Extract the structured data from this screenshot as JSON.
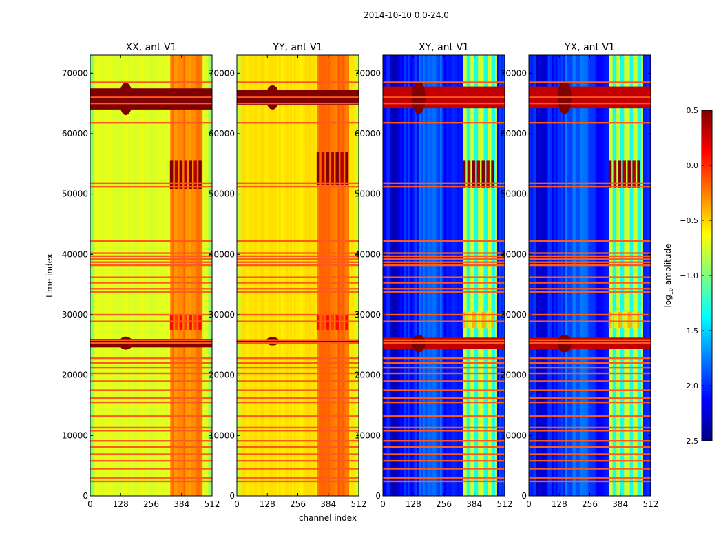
{
  "figure": {
    "suptitle": "2014-10-10 0.0-24.0",
    "xlabel": "channel index",
    "ylabel": "time index"
  },
  "colors": {
    "jet": [
      "#00007f",
      "#0000ff",
      "#007fff",
      "#00ffff",
      "#7fff7f",
      "#ffff00",
      "#ff7f00",
      "#ff0000",
      "#7f0000"
    ],
    "flag_line": "#ff5a1e"
  },
  "chart_data": {
    "type": "heatmap",
    "x_ticks": [
      0,
      128,
      256,
      384,
      512
    ],
    "y_ticks": [
      0,
      10000,
      20000,
      30000,
      40000,
      50000,
      60000,
      70000
    ],
    "xlim": [
      0,
      512
    ],
    "ylim": [
      0,
      73000
    ],
    "panels": [
      {
        "title": "XX, ant V1",
        "kind": "auto",
        "base": -0.72,
        "bright_band_level": -0.25,
        "rfi_bands": [
          [
            64000,
            67500
          ],
          [
            24600,
            26000
          ]
        ],
        "rfi_level": 0.5,
        "hot_blocks": [
          [
            50800,
            55500,
            0.5
          ],
          [
            27500,
            30000,
            0.1
          ]
        ]
      },
      {
        "title": "YY, ant V1",
        "kind": "auto",
        "base": -0.55,
        "bright_band_level": -0.2,
        "rfi_bands": [
          [
            64700,
            67300
          ],
          [
            25300,
            25900
          ]
        ],
        "rfi_level": 0.5,
        "hot_blocks": [
          [
            51500,
            57000,
            0.5
          ],
          [
            27500,
            30000,
            0.1
          ]
        ]
      },
      {
        "title": "XY, ant V1",
        "kind": "cross",
        "base": -2.05,
        "bright_band_level": -1.0,
        "rfi_bands": [
          [
            64200,
            67800
          ],
          [
            24300,
            26200
          ]
        ],
        "rfi_level": 0.3,
        "hot_blocks": [
          [
            51000,
            55500,
            0.5
          ],
          [
            27800,
            30500,
            -0.4
          ]
        ]
      },
      {
        "title": "YX, ant V1",
        "kind": "cross",
        "base": -2.05,
        "bright_band_level": -1.0,
        "rfi_bands": [
          [
            64200,
            67800
          ],
          [
            24300,
            26200
          ]
        ],
        "rfi_level": 0.3,
        "hot_blocks": [
          [
            51000,
            55500,
            0.5
          ],
          [
            27800,
            30500,
            -0.4
          ]
        ]
      }
    ],
    "flag_rows": [
      68500,
      66000,
      65000,
      61800,
      51800,
      51200,
      42200,
      40200,
      39700,
      39200,
      38700,
      38200,
      36200,
      35300,
      34300,
      33800,
      30000,
      28900,
      25800,
      25300,
      22800,
      22000,
      21200,
      20300,
      19000,
      17500,
      16200,
      15500,
      13200,
      11300,
      10800,
      9100,
      8100,
      6900,
      5800,
      4500,
      3000,
      2400
    ],
    "colorbar": {
      "label": "log10 amplitude",
      "label_prefix": "log",
      "label_sub": "10",
      "label_suffix": " amplitude",
      "range": [
        -2.5,
        0.5
      ],
      "ticks": [
        "0.5",
        "0.0",
        "−0.5",
        "−1.0",
        "−1.5",
        "−2.0",
        "−2.5"
      ],
      "tick_values": [
        0.5,
        0.0,
        -0.5,
        -1.0,
        -1.5,
        -2.0,
        -2.5
      ]
    }
  }
}
